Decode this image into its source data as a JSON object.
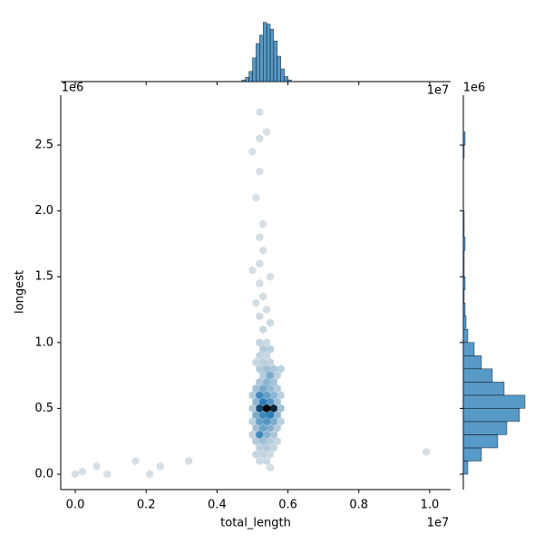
{
  "chart_data": {
    "type": "hexbin",
    "x_label": "total_length",
    "y_label": "longest",
    "x_offset_label": "1e7",
    "y_offset_label": "1e6",
    "xlim": [
      -0.041,
      1.059
    ],
    "ylim": [
      -0.117,
      2.879
    ],
    "xticks": [
      {
        "value": 0,
        "label": "0.0"
      },
      0.2,
      0.4,
      0.6,
      0.8,
      {
        "value": 1,
        "label": "1.0"
      }
    ],
    "yticks": [
      {
        "value": 0,
        "label": "0.0"
      },
      0.5,
      {
        "value": 1,
        "label": "1.0"
      },
      1.5,
      {
        "value": 2,
        "label": "2.0"
      },
      2.5
    ],
    "color": "#1f77b4",
    "hexes": {
      "x": [
        0.52,
        0.54,
        0.56,
        0.5,
        0.58,
        0.51,
        0.53,
        0.55,
        0.57,
        0.51,
        0.53,
        0.55,
        0.57,
        0.5,
        0.52,
        0.54,
        0.56,
        0.58,
        0.51,
        0.53,
        0.55,
        0.57,
        0.52,
        0.54,
        0.56,
        0.53,
        0.55,
        0.57,
        0.52,
        0.54,
        0.56,
        0.58,
        0.51,
        0.53,
        0.55,
        0.52,
        0.54,
        0.53,
        0.55,
        0.52,
        0.54,
        0.5,
        0.52,
        0.54,
        0.56,
        0.58,
        0.51,
        0.53,
        0.55,
        0.57,
        0.5,
        0.52,
        0.54,
        0.56,
        0.51,
        0.53,
        0.55,
        0.57,
        0.52,
        0.54,
        0.56,
        0.51,
        0.53,
        0.55,
        0.52,
        0.54,
        0.55,
        0.53,
        0.55,
        0.52,
        0.54,
        0.51,
        0.53,
        0.52,
        0.55,
        0.5,
        0.52,
        0.53,
        0.52,
        0.53,
        0.51,
        0.52,
        0.5,
        0.52,
        0.54,
        0.52,
        0.0,
        0.02,
        0.06,
        0.09,
        0.17,
        0.21,
        0.24,
        0.32,
        0.99
      ],
      "y": [
        0.5,
        0.5,
        0.5,
        0.5,
        0.5,
        0.45,
        0.45,
        0.45,
        0.45,
        0.55,
        0.55,
        0.55,
        0.55,
        0.6,
        0.6,
        0.6,
        0.6,
        0.6,
        0.65,
        0.65,
        0.65,
        0.65,
        0.7,
        0.7,
        0.7,
        0.75,
        0.75,
        0.75,
        0.8,
        0.8,
        0.8,
        0.8,
        0.85,
        0.85,
        0.85,
        0.9,
        0.9,
        0.95,
        0.95,
        1.0,
        1.0,
        0.4,
        0.4,
        0.4,
        0.4,
        0.4,
        0.35,
        0.35,
        0.35,
        0.35,
        0.3,
        0.3,
        0.3,
        0.3,
        0.25,
        0.25,
        0.25,
        0.25,
        0.2,
        0.2,
        0.2,
        0.15,
        0.15,
        0.15,
        0.1,
        0.1,
        0.05,
        1.1,
        1.15,
        1.2,
        1.25,
        1.3,
        1.35,
        1.45,
        1.5,
        1.55,
        1.6,
        1.7,
        1.8,
        1.9,
        2.1,
        2.3,
        2.45,
        2.55,
        2.6,
        2.75,
        0.0,
        0.02,
        0.06,
        0.0,
        0.1,
        0.0,
        0.06,
        0.1,
        0.17
      ],
      "counts": [
        60,
        80,
        70,
        10,
        15,
        25,
        40,
        45,
        20,
        20,
        45,
        35,
        15,
        10,
        40,
        30,
        20,
        8,
        15,
        25,
        18,
        10,
        12,
        20,
        14,
        10,
        25,
        8,
        10,
        15,
        12,
        8,
        5,
        8,
        6,
        6,
        5,
        10,
        8,
        6,
        4,
        8,
        30,
        35,
        25,
        8,
        15,
        28,
        22,
        10,
        6,
        40,
        20,
        12,
        10,
        15,
        10,
        5,
        8,
        10,
        6,
        5,
        6,
        4,
        3,
        4,
        2,
        4,
        3,
        3,
        2,
        2,
        2,
        2,
        1,
        1,
        2,
        1,
        2,
        1,
        1,
        1,
        1,
        2,
        1,
        1,
        1,
        1,
        1,
        1,
        1,
        1,
        1,
        1,
        1
      ]
    },
    "x_hist": {
      "bins": [
        0.47,
        0.48,
        0.49,
        0.5,
        0.51,
        0.52,
        0.53,
        0.54,
        0.55,
        0.56,
        0.57,
        0.58,
        0.59,
        0.6,
        0.61
      ],
      "counts": [
        2,
        5,
        12,
        28,
        45,
        55,
        70,
        68,
        62,
        48,
        30,
        15,
        6,
        2
      ],
      "lim": [
        0,
        75
      ]
    },
    "y_hist": {
      "bins": [
        0,
        0.1,
        0.2,
        0.3,
        0.4,
        0.5,
        0.6,
        0.7,
        0.8,
        0.9,
        1.0,
        1.1,
        1.2,
        1.3,
        1.4,
        1.5,
        1.6,
        1.7,
        1.8,
        1.9,
        2.0,
        2.1,
        2.2,
        2.3,
        2.4,
        2.5,
        2.6,
        2.7
      ],
      "counts": [
        5,
        20,
        38,
        48,
        62,
        68,
        45,
        32,
        20,
        12,
        5,
        3,
        2,
        1,
        2,
        1,
        1,
        2,
        1,
        1,
        0,
        0,
        0,
        0,
        1,
        2,
        0
      ],
      "lim": [
        0,
        75
      ]
    }
  }
}
